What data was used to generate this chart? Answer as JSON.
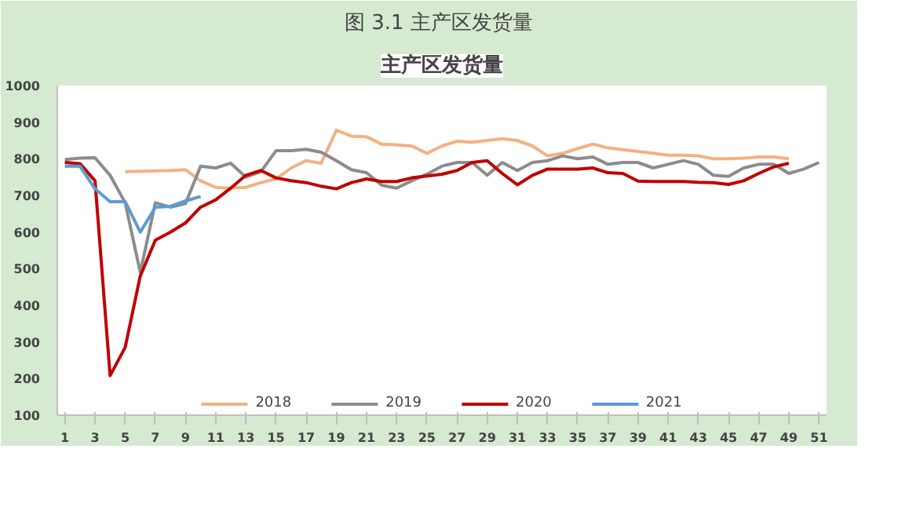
{
  "chart_data": {
    "type": "line",
    "title": "图 3.1  主产区发货量",
    "subtitle": "主产区发货量",
    "x": [
      1,
      2,
      3,
      4,
      5,
      6,
      7,
      8,
      9,
      10,
      11,
      12,
      13,
      14,
      15,
      16,
      17,
      18,
      19,
      20,
      21,
      22,
      23,
      24,
      25,
      26,
      27,
      28,
      29,
      30,
      31,
      32,
      33,
      34,
      35,
      36,
      37,
      38,
      39,
      40,
      41,
      42,
      43,
      44,
      45,
      46,
      47,
      48,
      49,
      50,
      51
    ],
    "series": [
      {
        "name": "2018",
        "color": "#f4b183",
        "values": [
          null,
          null,
          null,
          null,
          765,
          766,
          767,
          768,
          770,
          740,
          722,
          720,
          722,
          735,
          745,
          775,
          795,
          788,
          878,
          862,
          860,
          840,
          838,
          835,
          815,
          835,
          848,
          845,
          850,
          855,
          850,
          835,
          808,
          815,
          828,
          840,
          830,
          825,
          820,
          815,
          810,
          810,
          808,
          800,
          800,
          802,
          805,
          805,
          800,
          null,
          null
        ]
      },
      {
        "name": "2019",
        "color": "#8c8c8c",
        "values": [
          798,
          802,
          803,
          755,
          680,
          490,
          680,
          668,
          678,
          780,
          775,
          788,
          750,
          765,
          822,
          822,
          826,
          818,
          795,
          770,
          762,
          728,
          720,
          740,
          758,
          780,
          790,
          790,
          755,
          790,
          768,
          790,
          795,
          808,
          800,
          805,
          785,
          790,
          790,
          775,
          785,
          795,
          785,
          755,
          752,
          775,
          785,
          785,
          760,
          772,
          790
        ]
      },
      {
        "name": "2020",
        "color": "#c00000",
        "values": [
          790,
          787,
          740,
          208,
          285,
          480,
          578,
          600,
          625,
          668,
          688,
          720,
          755,
          768,
          748,
          740,
          735,
          725,
          718,
          735,
          745,
          738,
          738,
          748,
          753,
          758,
          768,
          790,
          795,
          760,
          729,
          755,
          772,
          772,
          772,
          775,
          762,
          760,
          739,
          738,
          738,
          738,
          736,
          735,
          730,
          740,
          760,
          778,
          788,
          null,
          null
        ]
      },
      {
        "name": "2021",
        "color": "#5b9bd5",
        "values": [
          780,
          780,
          718,
          683,
          683,
          600,
          668,
          670,
          685,
          697,
          null,
          null,
          null,
          null,
          null,
          null,
          null,
          null,
          null,
          null,
          null,
          null,
          null,
          null,
          null,
          null,
          null,
          null,
          null,
          null,
          null,
          null,
          null,
          null,
          null,
          null,
          null,
          null,
          null,
          null,
          null,
          null,
          null,
          null,
          null,
          null,
          null,
          null,
          null,
          null,
          null
        ]
      }
    ],
    "xlim": [
      0.5,
      51.5
    ],
    "xticks": [
      1,
      3,
      5,
      7,
      9,
      11,
      13,
      15,
      17,
      19,
      21,
      23,
      25,
      27,
      29,
      31,
      33,
      35,
      37,
      39,
      41,
      43,
      45,
      47,
      49,
      51
    ],
    "ylim": [
      100,
      1000
    ],
    "yticks": [
      100,
      200,
      300,
      400,
      500,
      600,
      700,
      800,
      900,
      1000
    ],
    "grid": false,
    "legend": "bottom",
    "marker": "none",
    "line_style": "solid"
  }
}
